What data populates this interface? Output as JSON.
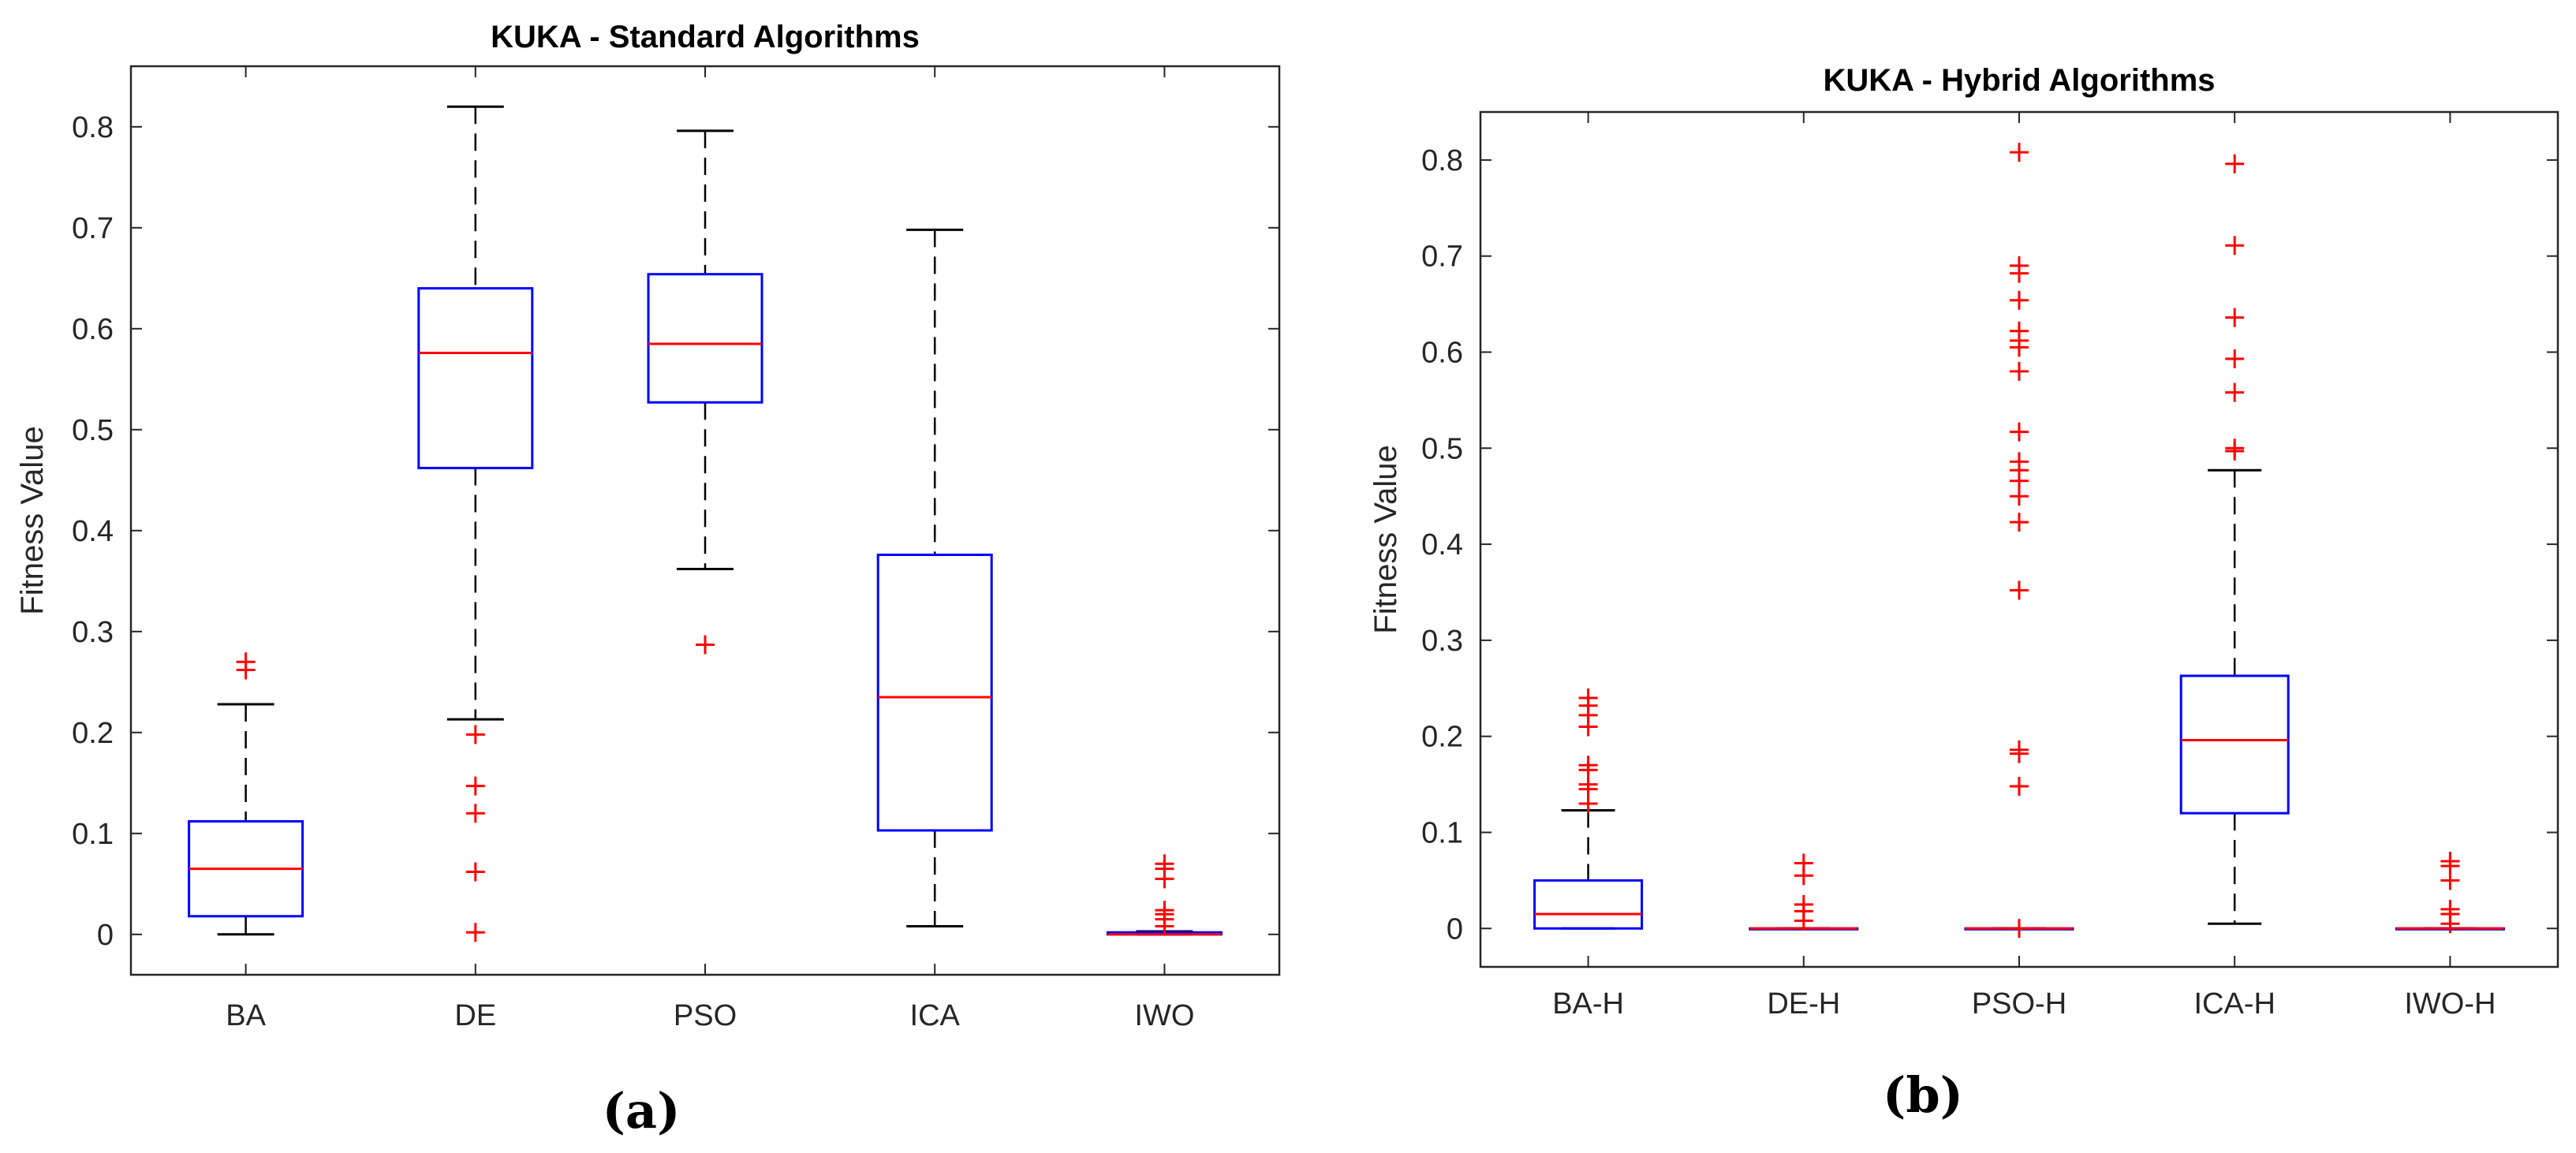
{
  "colors": {
    "box": "#0000ff",
    "median": "#ff0000",
    "whisker": "#000000",
    "outlier": "#ff0000",
    "axis": "#262626"
  },
  "chart_data": [
    {
      "type": "box",
      "title": "KUKA - Standard Algorithms",
      "ylabel": "Fitness Value",
      "xlabel": "",
      "sublabel": "(a)",
      "ylim": [
        -0.04,
        0.86
      ],
      "yticks": [
        "0",
        "0.1",
        "0.2",
        "0.3",
        "0.4",
        "0.5",
        "0.6",
        "0.7",
        "0.8"
      ],
      "categories": [
        "BA",
        "DE",
        "PSO",
        "ICA",
        "IWO"
      ],
      "boxes": [
        {
          "name": "BA",
          "lower_whisker": 0.0,
          "q1": 0.018,
          "median": 0.065,
          "q3": 0.112,
          "upper_whisker": 0.228,
          "outliers": [
            0.262,
            0.27
          ]
        },
        {
          "name": "DE",
          "lower_whisker": 0.213,
          "q1": 0.462,
          "median": 0.576,
          "q3": 0.64,
          "upper_whisker": 0.82,
          "outliers": [
            0.198,
            0.147,
            0.12,
            0.062,
            0.002
          ]
        },
        {
          "name": "PSO",
          "lower_whisker": 0.362,
          "q1": 0.527,
          "median": 0.585,
          "q3": 0.654,
          "upper_whisker": 0.796,
          "outliers": [
            0.287
          ]
        },
        {
          "name": "ICA",
          "lower_whisker": 0.008,
          "q1": 0.103,
          "median": 0.235,
          "q3": 0.376,
          "upper_whisker": 0.698,
          "outliers": []
        },
        {
          "name": "IWO",
          "lower_whisker": 0.0,
          "q1": 0.0,
          "median": 0.0,
          "q3": 0.002,
          "upper_whisker": 0.003,
          "outliers": [
            0.008,
            0.015,
            0.02,
            0.024,
            0.055,
            0.065,
            0.07
          ]
        }
      ]
    },
    {
      "type": "box",
      "title": "KUKA - Hybrid Algorithms",
      "ylabel": "Fitness Value",
      "xlabel": "",
      "sublabel": "(b)",
      "ylim": [
        -0.04,
        0.85
      ],
      "yticks": [
        "0",
        "0.1",
        "0.2",
        "0.3",
        "0.4",
        "0.5",
        "0.6",
        "0.7",
        "0.8"
      ],
      "categories": [
        "BA-H",
        "DE-H",
        "PSO-H",
        "ICA-H",
        "IWO-H"
      ],
      "boxes": [
        {
          "name": "BA-H",
          "lower_whisker": 0.0,
          "q1": 0.0,
          "median": 0.015,
          "q3": 0.05,
          "upper_whisker": 0.123,
          "outliers": [
            0.13,
            0.145,
            0.15,
            0.165,
            0.17,
            0.21,
            0.222,
            0.232,
            0.24
          ]
        },
        {
          "name": "DE-H",
          "lower_whisker": 0.0,
          "q1": 0.0,
          "median": 0.0,
          "q3": 0.0,
          "upper_whisker": 0.0,
          "outliers": [
            0.008,
            0.018,
            0.025,
            0.055,
            0.068
          ]
        },
        {
          "name": "PSO-H",
          "lower_whisker": 0.0,
          "q1": 0.0,
          "median": 0.0,
          "q3": 0.0,
          "upper_whisker": 0.0,
          "outliers": [
            0.0,
            0.148,
            0.182,
            0.186,
            0.352,
            0.423,
            0.45,
            0.466,
            0.477,
            0.486,
            0.517,
            0.58,
            0.605,
            0.612,
            0.622,
            0.654,
            0.682,
            0.69,
            0.808
          ]
        },
        {
          "name": "ICA-H",
          "lower_whisker": 0.005,
          "q1": 0.12,
          "median": 0.196,
          "q3": 0.263,
          "upper_whisker": 0.477,
          "outliers": [
            0.497,
            0.5,
            0.558,
            0.593,
            0.636,
            0.711,
            0.796
          ]
        },
        {
          "name": "IWO-H",
          "lower_whisker": 0.0,
          "q1": 0.0,
          "median": 0.0,
          "q3": 0.0,
          "upper_whisker": 0.0,
          "outliers": [
            0.005,
            0.015,
            0.02,
            0.05,
            0.065,
            0.07
          ]
        }
      ]
    }
  ]
}
